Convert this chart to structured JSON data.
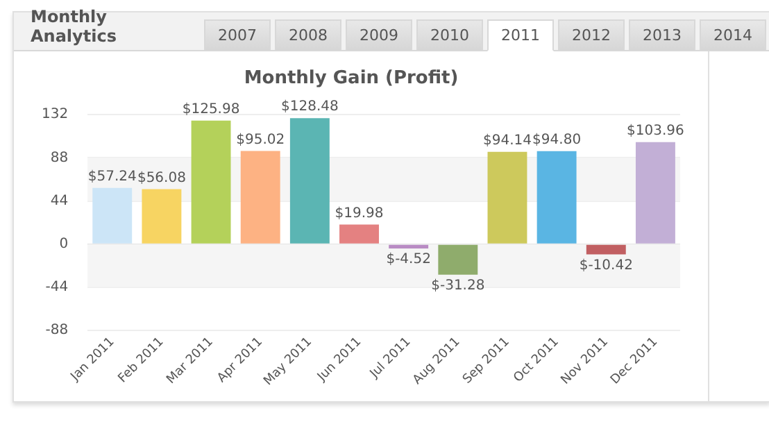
{
  "chart_data": {
    "type": "bar",
    "title": "Monthly Gain (Profit)",
    "annotations": [
      "Monthly Analytics",
      "2007",
      "2008",
      "2009",
      "2010",
      "2011",
      "2012",
      "2013",
      "2014"
    ],
    "categories": [
      "Jan 2011",
      "Feb 2011",
      "Mar 2011",
      "Apr 2011",
      "May 2011",
      "Jun 2011",
      "Jul 2011",
      "Aug 2011",
      "Sep 2011",
      "Oct 2011",
      "Nov 2011",
      "Dec 2011"
    ],
    "values": [
      57.24,
      56.08,
      125.98,
      95.02,
      128.48,
      19.98,
      -4.52,
      -31.28,
      94.14,
      94.8,
      -10.42,
      103.96
    ],
    "colors": [
      "#cce5f7",
      "#f7d462",
      "#b4d15a",
      "#fdb283",
      "#5bb5b3",
      "#e48181",
      "#b98cc4",
      "#8fac6c",
      "#cdc95c",
      "#5ab5e3",
      "#c15f62",
      "#c2afd6"
    ],
    "value_labels": [
      "$57.24",
      "$56.08",
      "$125.98",
      "$95.02",
      "$128.48",
      "$19.98",
      "$-4.52",
      "$-31.28",
      "$94.14",
      "$94.80",
      "$-10.42",
      "$103.96"
    ],
    "ylim": [
      -88,
      132
    ],
    "yticks": [
      -88,
      -44,
      0,
      44,
      88,
      132
    ],
    "grid": "y",
    "legend": false
  }
}
